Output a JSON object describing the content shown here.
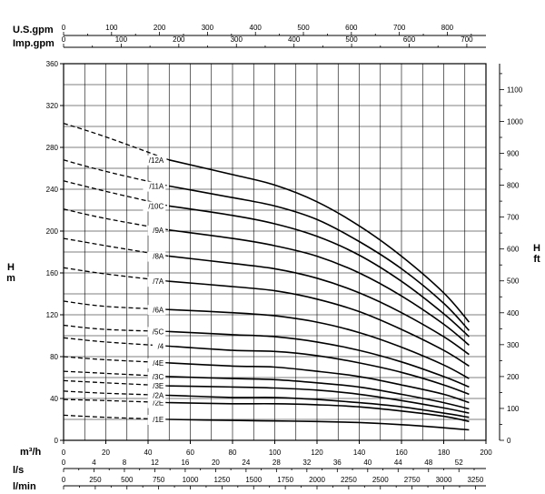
{
  "chart_data": {
    "type": "line",
    "title": "",
    "grid": true,
    "x": {
      "label": "m³/h",
      "range": [
        0,
        200
      ],
      "ticks": [
        0,
        20,
        40,
        60,
        80,
        100,
        120,
        140,
        160,
        180,
        200
      ]
    },
    "y": {
      "label": "H\nm",
      "range": [
        0,
        360
      ],
      "ticks": [
        0,
        40,
        80,
        120,
        160,
        200,
        240,
        280,
        320,
        360
      ]
    },
    "y_right": {
      "label": "H\nft",
      "ticks": [
        0,
        100,
        200,
        300,
        400,
        500,
        600,
        700,
        800,
        900,
        1000,
        1100
      ]
    },
    "secondary_x_axes": [
      {
        "label": "U.S.gpm",
        "position": "top",
        "ticks": [
          0,
          100,
          200,
          300,
          400,
          500,
          600,
          700,
          800
        ]
      },
      {
        "label": "Imp.gpm",
        "position": "top",
        "ticks": [
          0,
          100,
          200,
          300,
          400,
          500,
          600,
          700
        ]
      },
      {
        "label": "l/s",
        "position": "bottom",
        "ticks": [
          0,
          4,
          8,
          12,
          16,
          20,
          24,
          28,
          32,
          36,
          40,
          44,
          48,
          52
        ]
      },
      {
        "label": "l/min",
        "position": "bottom",
        "ticks": [
          0,
          250,
          500,
          750,
          1000,
          1250,
          1500,
          1750,
          2000,
          2250,
          2500,
          2750,
          3000,
          3250
        ]
      }
    ],
    "recommended_range_start_x": 50,
    "series": [
      {
        "name": "/1E",
        "points": [
          [
            0,
            24
          ],
          [
            20,
            22
          ],
          [
            50,
            20
          ],
          [
            80,
            19
          ],
          [
            100,
            18.5
          ],
          [
            120,
            18
          ],
          [
            140,
            17
          ],
          [
            160,
            15
          ],
          [
            180,
            12
          ],
          [
            192,
            10
          ]
        ]
      },
      {
        "name": "/2E",
        "points": [
          [
            0,
            39
          ],
          [
            20,
            38
          ],
          [
            50,
            36
          ],
          [
            80,
            35
          ],
          [
            100,
            35
          ],
          [
            120,
            34
          ],
          [
            140,
            32
          ],
          [
            160,
            28
          ],
          [
            180,
            23
          ],
          [
            192,
            18
          ]
        ]
      },
      {
        "name": "/2A",
        "points": [
          [
            0,
            47
          ],
          [
            20,
            45
          ],
          [
            50,
            43
          ],
          [
            80,
            41
          ],
          [
            100,
            41
          ],
          [
            120,
            39
          ],
          [
            140,
            36
          ],
          [
            160,
            32
          ],
          [
            180,
            26
          ],
          [
            192,
            22
          ]
        ]
      },
      {
        "name": "/3E",
        "points": [
          [
            0,
            57
          ],
          [
            20,
            55
          ],
          [
            50,
            52
          ],
          [
            80,
            51
          ],
          [
            100,
            50
          ],
          [
            120,
            48
          ],
          [
            140,
            44
          ],
          [
            160,
            38
          ],
          [
            180,
            31
          ],
          [
            192,
            26
          ]
        ]
      },
      {
        "name": "/3C",
        "points": [
          [
            0,
            66
          ],
          [
            20,
            64
          ],
          [
            50,
            61
          ],
          [
            80,
            59
          ],
          [
            100,
            58
          ],
          [
            120,
            55
          ],
          [
            140,
            51
          ],
          [
            160,
            44
          ],
          [
            180,
            36
          ],
          [
            192,
            30
          ]
        ]
      },
      {
        "name": "/4E",
        "points": [
          [
            0,
            80
          ],
          [
            20,
            77
          ],
          [
            50,
            74
          ],
          [
            80,
            71
          ],
          [
            100,
            70
          ],
          [
            120,
            66
          ],
          [
            140,
            61
          ],
          [
            160,
            53
          ],
          [
            180,
            44
          ],
          [
            192,
            36
          ]
        ]
      },
      {
        "name": "/4",
        "points": [
          [
            0,
            98
          ],
          [
            20,
            94
          ],
          [
            50,
            90
          ],
          [
            80,
            86
          ],
          [
            100,
            85
          ],
          [
            120,
            81
          ],
          [
            140,
            74
          ],
          [
            160,
            65
          ],
          [
            180,
            53
          ],
          [
            192,
            44
          ]
        ]
      },
      {
        "name": "/5C",
        "points": [
          [
            0,
            110
          ],
          [
            20,
            106
          ],
          [
            50,
            104
          ],
          [
            80,
            101
          ],
          [
            100,
            99
          ],
          [
            120,
            94
          ],
          [
            140,
            86
          ],
          [
            160,
            75
          ],
          [
            180,
            61
          ],
          [
            192,
            51
          ]
        ]
      },
      {
        "name": "/6A",
        "points": [
          [
            0,
            133
          ],
          [
            20,
            128
          ],
          [
            50,
            125
          ],
          [
            80,
            122
          ],
          [
            100,
            119
          ],
          [
            120,
            113
          ],
          [
            140,
            103
          ],
          [
            160,
            89
          ],
          [
            180,
            72
          ],
          [
            192,
            59
          ]
        ]
      },
      {
        "name": "/7A",
        "points": [
          [
            0,
            165
          ],
          [
            20,
            159
          ],
          [
            50,
            152
          ],
          [
            80,
            147
          ],
          [
            100,
            143
          ],
          [
            120,
            135
          ],
          [
            140,
            123
          ],
          [
            160,
            106
          ],
          [
            180,
            86
          ],
          [
            192,
            71
          ]
        ]
      },
      {
        "name": "/8A",
        "points": [
          [
            0,
            193
          ],
          [
            20,
            186
          ],
          [
            50,
            176
          ],
          [
            80,
            169
          ],
          [
            100,
            164
          ],
          [
            120,
            155
          ],
          [
            140,
            141
          ],
          [
            160,
            122
          ],
          [
            180,
            99
          ],
          [
            192,
            82
          ]
        ]
      },
      {
        "name": "/9A",
        "points": [
          [
            0,
            221
          ],
          [
            20,
            212
          ],
          [
            50,
            201
          ],
          [
            80,
            193
          ],
          [
            100,
            186
          ],
          [
            120,
            176
          ],
          [
            140,
            160
          ],
          [
            160,
            138
          ],
          [
            180,
            111
          ],
          [
            192,
            91
          ]
        ]
      },
      {
        "name": "/10C",
        "points": [
          [
            0,
            248
          ],
          [
            20,
            238
          ],
          [
            50,
            224
          ],
          [
            80,
            215
          ],
          [
            100,
            207
          ],
          [
            120,
            195
          ],
          [
            140,
            177
          ],
          [
            160,
            152
          ],
          [
            180,
            121
          ],
          [
            192,
            99
          ]
        ]
      },
      {
        "name": "/11A",
        "points": [
          [
            0,
            268
          ],
          [
            20,
            257
          ],
          [
            50,
            243
          ],
          [
            80,
            232
          ],
          [
            100,
            224
          ],
          [
            120,
            211
          ],
          [
            140,
            190
          ],
          [
            160,
            164
          ],
          [
            180,
            131
          ],
          [
            192,
            105
          ]
        ]
      },
      {
        "name": "/12A",
        "points": [
          [
            0,
            303
          ],
          [
            20,
            290
          ],
          [
            50,
            268
          ],
          [
            80,
            254
          ],
          [
            100,
            244
          ],
          [
            120,
            228
          ],
          [
            140,
            205
          ],
          [
            160,
            176
          ],
          [
            180,
            141
          ],
          [
            192,
            113
          ]
        ]
      }
    ]
  }
}
